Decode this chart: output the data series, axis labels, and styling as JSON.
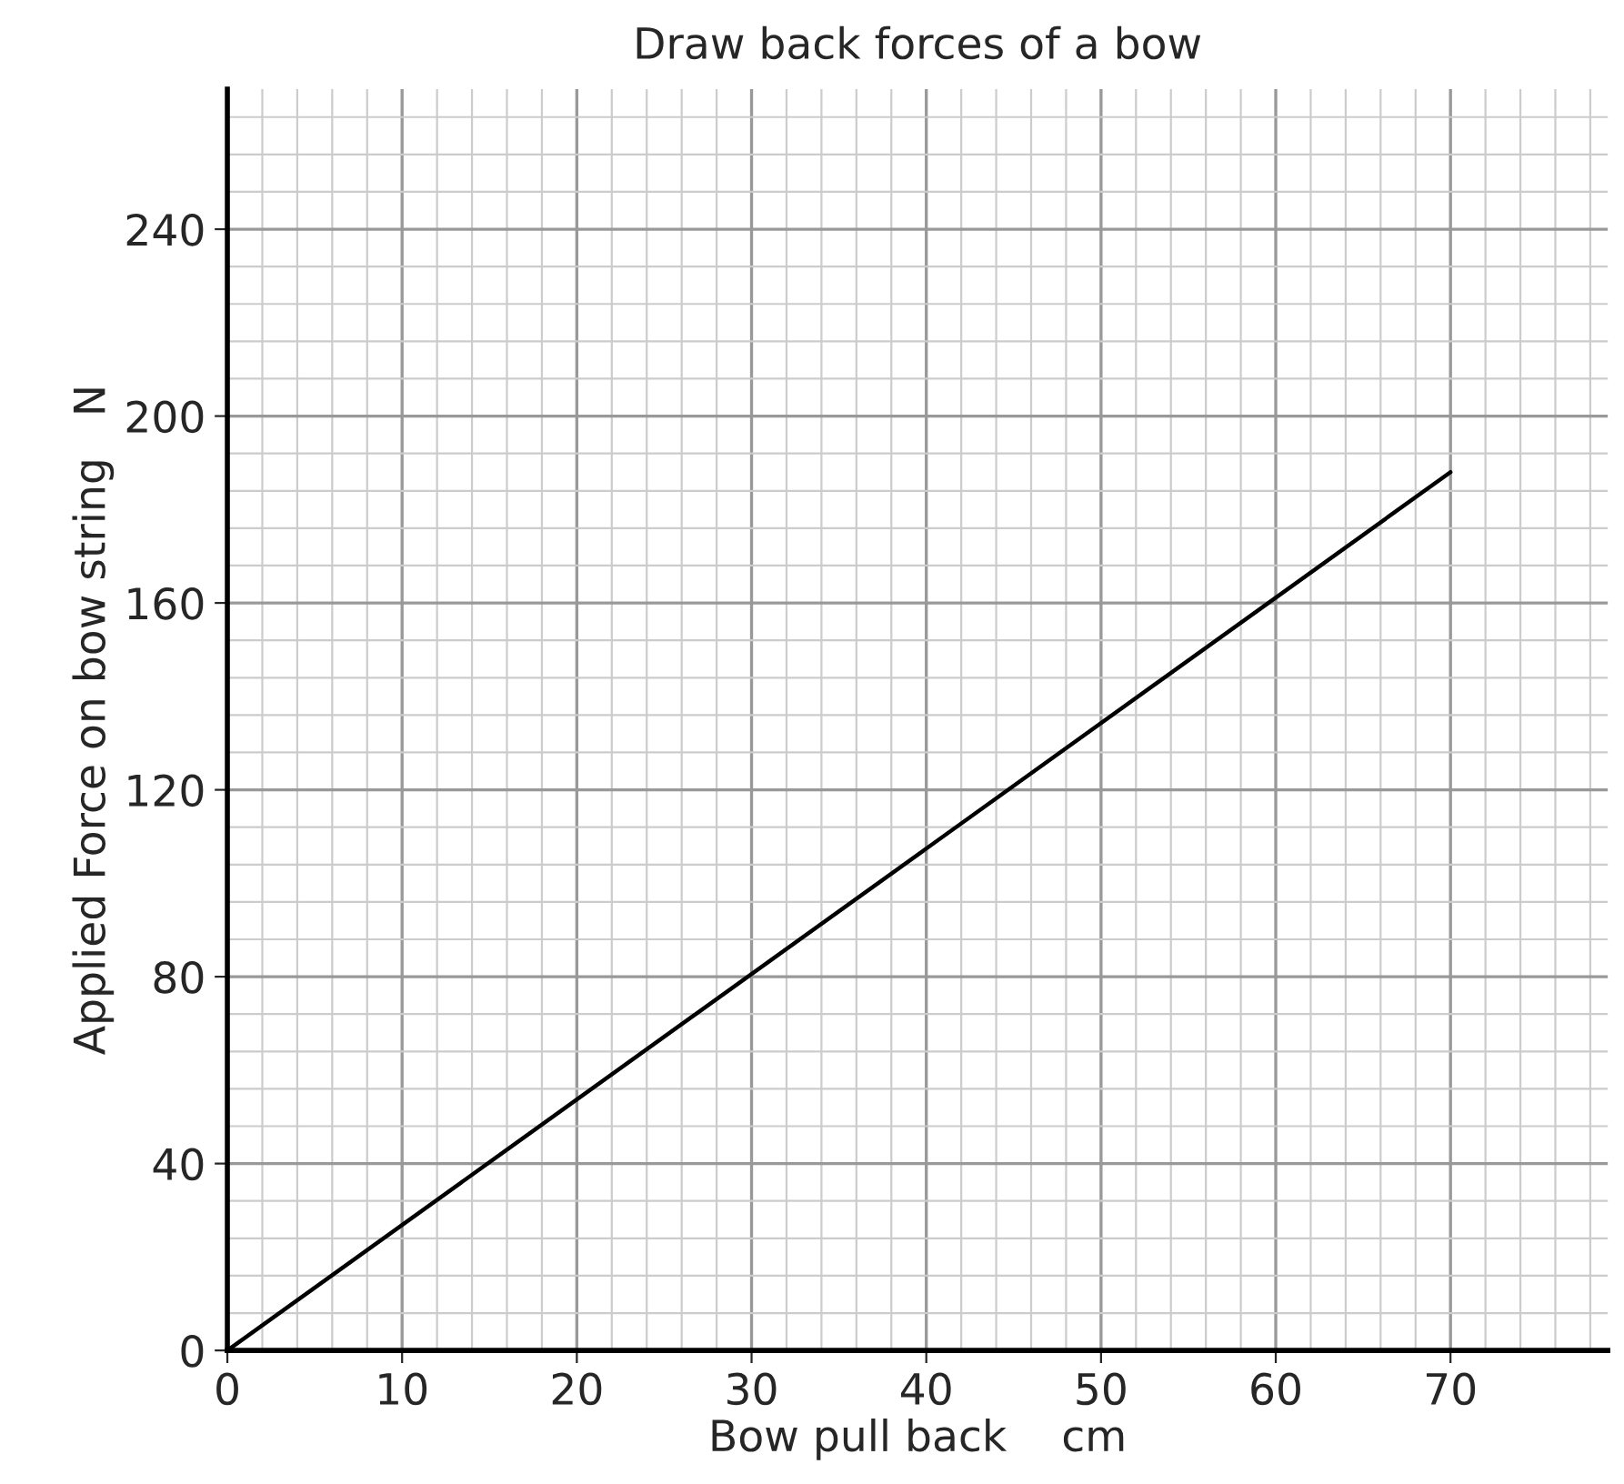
{
  "chart_data": {
    "type": "line",
    "title": "Draw back forces of a bow",
    "xlabel": "Bow pull back    cm",
    "ylabel": "Applied Force on bow string   N",
    "x": [
      0,
      70
    ],
    "series": [
      {
        "color": "#000000",
        "values": [
          0,
          188
        ]
      }
    ],
    "xlim": [
      0,
      79
    ],
    "ylim": [
      0,
      270
    ],
    "xticks": [
      0,
      10,
      20,
      30,
      40,
      50,
      60,
      70
    ],
    "yticks": [
      0,
      40,
      80,
      120,
      160,
      200,
      240
    ],
    "grid": true,
    "marker": "none",
    "line_style": "solid",
    "legend": false
  }
}
